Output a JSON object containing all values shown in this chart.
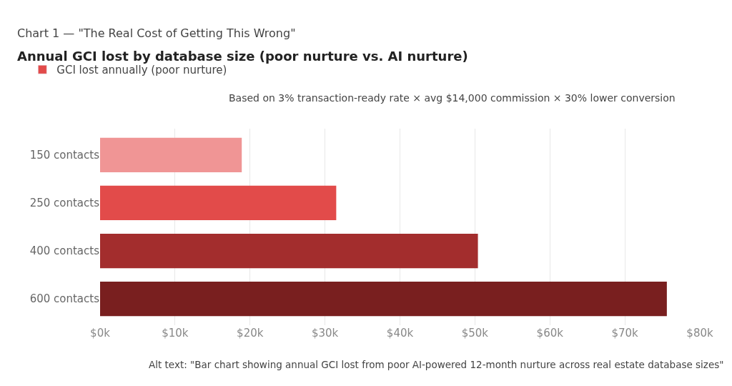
{
  "chart_data": {
    "type": "bar",
    "orientation": "horizontal",
    "subtitle": "Chart 1 — \"The Real Cost of Getting This Wrong\"",
    "title": "Annual GCI lost by database size (poor nurture vs. AI nurture)",
    "categories": [
      "150 contacts",
      "250 contacts",
      "400 contacts",
      "600 contacts"
    ],
    "series": [
      {
        "name": "GCI lost annually (poor nurture)",
        "color": "#e24b4a",
        "colors": [
          "#f09595",
          "#e24b4a",
          "#a32d2d",
          "#791f1f"
        ],
        "values": [
          18900,
          31500,
          50400,
          75600
        ]
      }
    ],
    "xlim": [
      0,
      80000
    ],
    "xticks": [
      {
        "value": 0,
        "label": "$0k"
      },
      {
        "value": 10000,
        "label": "$10k"
      },
      {
        "value": 20000,
        "label": "$20k"
      },
      {
        "value": 30000,
        "label": "$30k"
      },
      {
        "value": 40000,
        "label": "$40k"
      },
      {
        "value": 50000,
        "label": "$50k"
      },
      {
        "value": 60000,
        "label": "$60k"
      },
      {
        "value": 70000,
        "label": "$70k"
      },
      {
        "value": 80000,
        "label": "$80k"
      }
    ],
    "grid": "x",
    "legend": "top left",
    "annotations": [
      "Based on 3% transaction-ready rate × avg $14,000 commission × 30% lower conversion",
      "Alt text: \"Bar chart showing annual GCI lost from poor AI-powered 12-month nurture across real estate database sizes\""
    ]
  }
}
